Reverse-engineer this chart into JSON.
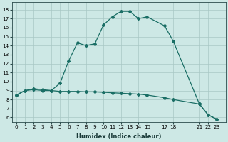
{
  "title": "",
  "xlabel": "Humidex (Indice chaleur)",
  "bg_color": "#cde8e5",
  "grid_color": "#a8c8c5",
  "line_color": "#1a6e65",
  "line1_x": [
    0,
    1,
    2,
    3,
    4,
    5,
    6,
    7,
    8,
    9,
    10,
    11,
    12,
    13,
    14,
    15,
    17,
    18
  ],
  "line1_y": [
    8.5,
    9.0,
    9.2,
    9.1,
    9.0,
    9.8,
    12.3,
    14.3,
    14.0,
    14.2,
    16.3,
    17.2,
    17.8,
    17.8,
    17.0,
    17.2,
    16.2,
    14.5
  ],
  "line2_x": [
    0,
    1,
    2,
    3,
    4,
    5,
    6,
    7,
    8,
    9,
    10,
    11,
    12,
    13,
    14,
    15,
    17,
    18,
    21,
    22,
    23
  ],
  "line2_y": [
    8.5,
    9.0,
    9.1,
    9.0,
    9.0,
    8.9,
    8.9,
    8.9,
    8.85,
    8.85,
    8.8,
    8.75,
    8.7,
    8.65,
    8.6,
    8.5,
    8.2,
    8.0,
    7.5,
    6.3,
    5.8
  ],
  "line3_x": [
    18,
    21,
    22,
    23
  ],
  "line3_y": [
    14.5,
    7.5,
    6.3,
    5.8
  ],
  "xticks": [
    0,
    1,
    2,
    3,
    4,
    5,
    6,
    7,
    8,
    9,
    10,
    11,
    12,
    13,
    14,
    15,
    17,
    18,
    21,
    22,
    23
  ],
  "yticks": [
    6,
    7,
    8,
    9,
    10,
    11,
    12,
    13,
    14,
    15,
    16,
    17,
    18
  ],
  "xlim": [
    -0.5,
    24
  ],
  "ylim": [
    5.5,
    18.8
  ],
  "label_fontsize": 6.0,
  "tick_fontsize": 5.2
}
